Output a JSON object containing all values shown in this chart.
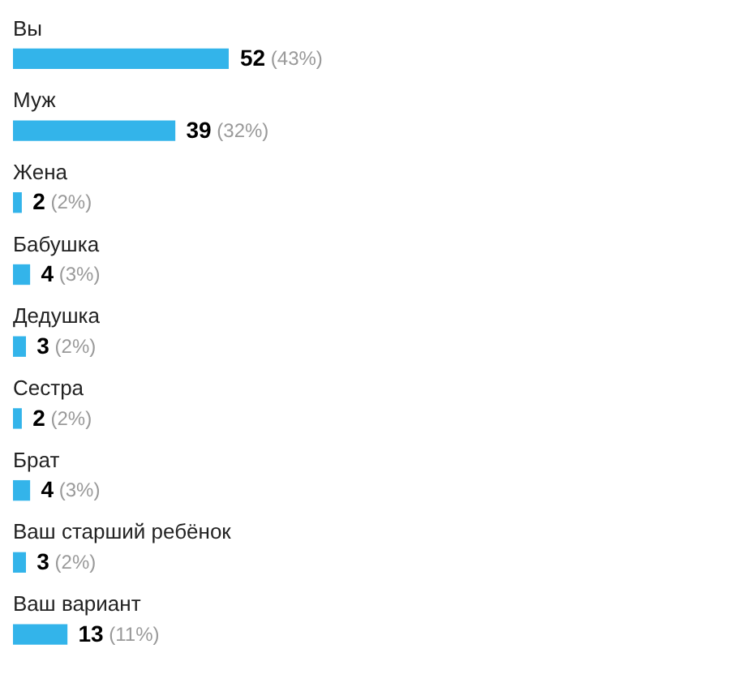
{
  "chart_data": {
    "type": "bar",
    "orientation": "horizontal",
    "categories": [
      "Вы",
      "Муж",
      "Жена",
      "Бабушка",
      "Дедушка",
      "Сестра",
      "Брат",
      "Ваш старший ребёнок",
      "Ваш вариант"
    ],
    "values": [
      52,
      39,
      2,
      4,
      3,
      2,
      4,
      3,
      13
    ],
    "color": "#33b4ea",
    "value_labels": [
      "52 (43%)",
      "39 (32%)",
      "2 (2%)",
      "4 (3%)",
      "3 (2%)",
      "2 (2%)",
      "4 (3%)",
      "3 (2%)",
      "13 (11%)"
    ],
    "tick_labels": "y"
  }
}
